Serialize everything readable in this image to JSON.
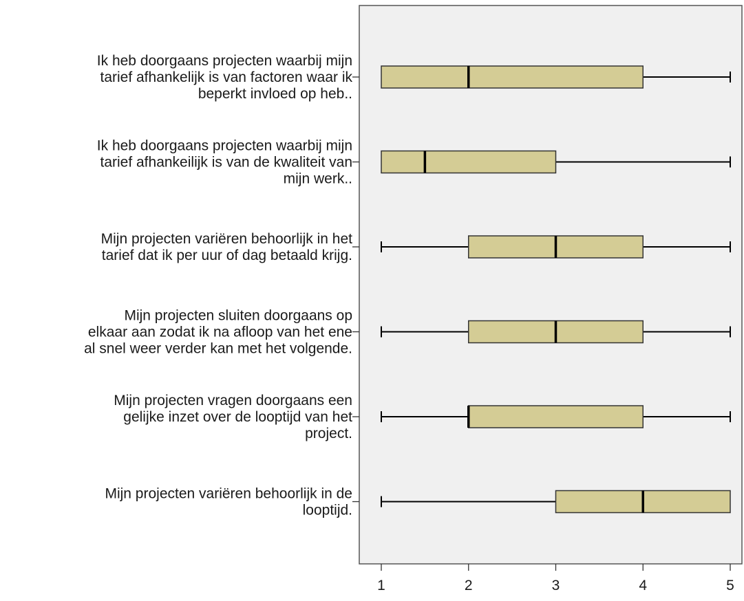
{
  "chart_data": {
    "type": "boxplot",
    "orientation": "horizontal",
    "title": "",
    "xlabel": "",
    "ylabel": "",
    "xlim": [
      1,
      5
    ],
    "xticks": [
      "1",
      "2",
      "3",
      "4",
      "5"
    ],
    "grid": false,
    "legend": "none",
    "colors": {
      "box_fill": "#d4cc95",
      "box_stroke": "#333333",
      "plot_bg": "#f0f0f0",
      "median": "#000000"
    },
    "categories": [
      {
        "label_lines": [
          "Ik heb doorgaans projecten waarbij mijn",
          "tarief afhankelijk is van factoren waar ik",
          "beperkt invloed op heb.."
        ],
        "min": 1,
        "q1": 1,
        "median": 2,
        "q3": 4,
        "max": 5
      },
      {
        "label_lines": [
          "Ik heb doorgaans projecten waarbij mijn",
          "tarief afhankeilijk is van de kwaliteit van",
          "mijn werk.."
        ],
        "min": 1,
        "q1": 1,
        "median": 1.5,
        "q3": 3,
        "max": 5
      },
      {
        "label_lines": [
          "Mijn projecten variëren behoorlijk in het",
          "tarief dat ik per uur of dag betaald krijg."
        ],
        "min": 1,
        "q1": 2,
        "median": 3,
        "q3": 4,
        "max": 5
      },
      {
        "label_lines": [
          "Mijn projecten sluiten doorgaans op",
          "elkaar aan zodat ik na afloop van het ene",
          "al snel weer verder kan met het volgende."
        ],
        "min": 1,
        "q1": 2,
        "median": 3,
        "q3": 4,
        "max": 5
      },
      {
        "label_lines": [
          "Mijn projecten vragen doorgaans een",
          "gelijke inzet over de looptijd van het",
          "project."
        ],
        "min": 1,
        "q1": 2,
        "median": 2,
        "q3": 4,
        "max": 5
      },
      {
        "label_lines": [
          "Mijn projecten variëren behoorlijk in de",
          "looptijd."
        ],
        "min": 1,
        "q1": 3,
        "median": 4,
        "q3": 5,
        "max": 5
      }
    ]
  }
}
